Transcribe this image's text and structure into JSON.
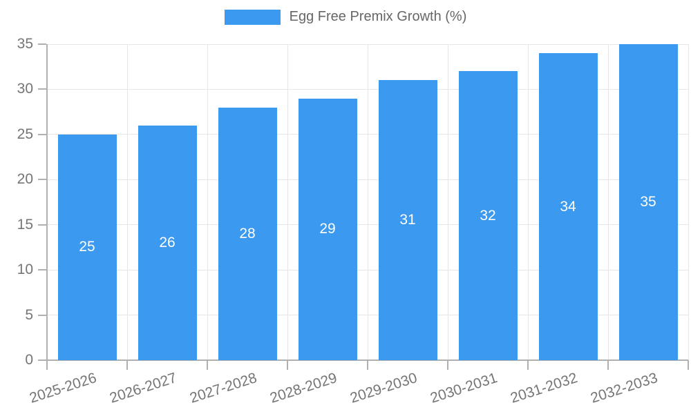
{
  "chart_data": {
    "type": "bar",
    "legend": {
      "label": "Egg Free Premix Growth (%)",
      "position": "top"
    },
    "categories": [
      "2025-2026",
      "2026-2027",
      "2027-2028",
      "2028-2029",
      "2029-2030",
      "2030-2031",
      "2031-2032",
      "2032-2033"
    ],
    "values": [
      25,
      26,
      28,
      29,
      31,
      32,
      34,
      35
    ],
    "value_labels": [
      "25",
      "26",
      "28",
      "29",
      "31",
      "32",
      "34",
      "35"
    ],
    "y_ticks": [
      0,
      5,
      10,
      15,
      20,
      25,
      30,
      35
    ],
    "ylim": [
      0,
      35
    ],
    "xlabel": "",
    "ylabel": "",
    "grid": true,
    "legend_position": "top",
    "x_label_rotation_deg": -18,
    "colors": {
      "bar": "#3B99EF",
      "value_label": "#FFFFFF",
      "grid": "#E6E6E6",
      "axis": "#B0B0B0",
      "tick_label": "#757575",
      "legend_label": "#666666"
    }
  }
}
